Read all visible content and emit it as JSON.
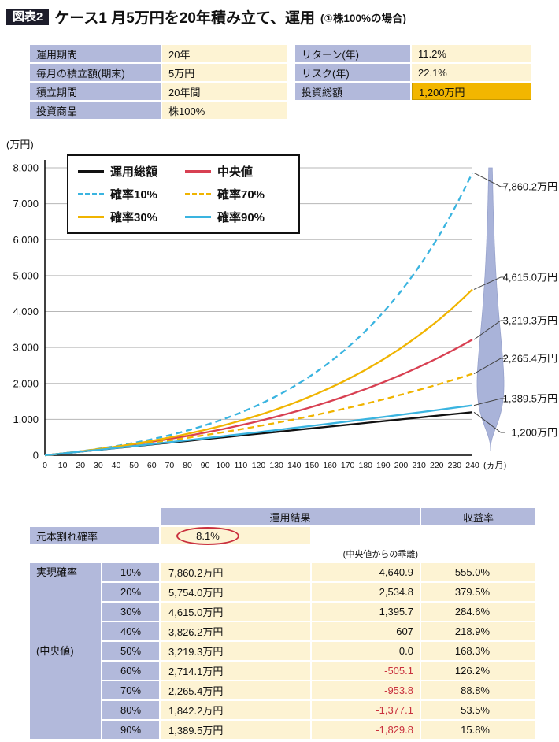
{
  "header": {
    "badge": "図表2",
    "title": "ケース1 月5万円を20年積み立て、運用",
    "subtitle": "(①株100%の場合)"
  },
  "conditions_table": [
    {
      "label": "運用期間",
      "value": "20年",
      "highlight": false
    },
    {
      "label": "毎月の積立額(期末)",
      "value": "5万円",
      "highlight": false
    },
    {
      "label": "積立期間",
      "value": "20年間",
      "highlight": false
    },
    {
      "label": "投資商品",
      "value": "株100%",
      "highlight": false
    }
  ],
  "stats_table": [
    {
      "label": "リターン(年)",
      "value": "11.2%",
      "highlight": false
    },
    {
      "label": "リスク(年)",
      "value": "22.1%",
      "highlight": false
    },
    {
      "label": "投資総額",
      "value": "1,200万円",
      "highlight": true
    }
  ],
  "chart_data": {
    "type": "line",
    "title": "",
    "ylabel": "(万円)",
    "xlabel": "(ヵ月)",
    "xlim": [
      0,
      240
    ],
    "ylim": [
      0,
      8000
    ],
    "y_ticks": [
      0,
      1000,
      2000,
      3000,
      4000,
      5000,
      6000,
      7000,
      8000
    ],
    "x_tick_step": 10,
    "grid": "horizontal",
    "legend_position": "top-left",
    "months": 240,
    "monthly_contribution": 5,
    "series": [
      {
        "name": "運用総額",
        "color": "#111111",
        "dash": false,
        "linear": true,
        "final": 1200
      },
      {
        "name": "中央値",
        "color": "#d84052",
        "dash": false,
        "linear": false,
        "final": 3219.3
      },
      {
        "name": "確率10%",
        "color": "#3ab4e0",
        "dash": true,
        "linear": false,
        "final": 7860.2
      },
      {
        "name": "確率70%",
        "color": "#f0b400",
        "dash": true,
        "linear": false,
        "final": 2265.4
      },
      {
        "name": "確率30%",
        "color": "#f0b400",
        "dash": false,
        "linear": false,
        "final": 4615.0
      },
      {
        "name": "確率90%",
        "color": "#3ab4e0",
        "dash": false,
        "linear": false,
        "final": 1389.5
      }
    ],
    "annotations": [
      {
        "label": "7,860.2万円",
        "value": 7860.2
      },
      {
        "label": "4,615.0万円",
        "value": 4615.0
      },
      {
        "label": "3,219.3万円",
        "value": 3219.3
      },
      {
        "label": "2,265.4万円",
        "value": 2265.4
      },
      {
        "label": "1,389.5万円",
        "value": 1389.5
      },
      {
        "label": "1,200万円",
        "value": 1200
      }
    ],
    "distribution": {
      "median": 3219.3,
      "sigma_ln": 0.696,
      "fill": "#a9b3d9",
      "stroke": "#97a2cc"
    }
  },
  "result_table": {
    "header_result": "運用結果",
    "header_return": "収益率",
    "loss_prob_label": "元本割れ確率",
    "loss_prob_value": "8.1%",
    "deviation_note": "(中央値からの乖離)",
    "group_label": "実現確率",
    "median_label": "(中央値)",
    "rows": [
      {
        "p": "10%",
        "amount": "7,860.2万円",
        "dev": "4,640.9",
        "ret": "555.0%"
      },
      {
        "p": "20%",
        "amount": "5,754.0万円",
        "dev": "2,534.8",
        "ret": "379.5%"
      },
      {
        "p": "30%",
        "amount": "4,615.0万円",
        "dev": "1,395.7",
        "ret": "284.6%"
      },
      {
        "p": "40%",
        "amount": "3,826.2万円",
        "dev": "607",
        "ret": "218.9%"
      },
      {
        "p": "50%",
        "amount": "3,219.3万円",
        "dev": "0.0",
        "ret": "168.3%"
      },
      {
        "p": "60%",
        "amount": "2,714.1万円",
        "dev": "-505.1",
        "ret": "126.2%"
      },
      {
        "p": "70%",
        "amount": "2,265.4万円",
        "dev": "-953.8",
        "ret": "88.8%"
      },
      {
        "p": "80%",
        "amount": "1,842.2万円",
        "dev": "-1,377.1",
        "ret": "53.5%"
      },
      {
        "p": "90%",
        "amount": "1,389.5万円",
        "dev": "-1,829.8",
        "ret": "15.8%"
      }
    ]
  },
  "colors": {
    "lavender": "#b2b9db",
    "cream": "#fdf3d3",
    "highlight_orange": "#f2b600",
    "negative_red": "#c9303e",
    "badge_bg": "#1d1d2b"
  }
}
